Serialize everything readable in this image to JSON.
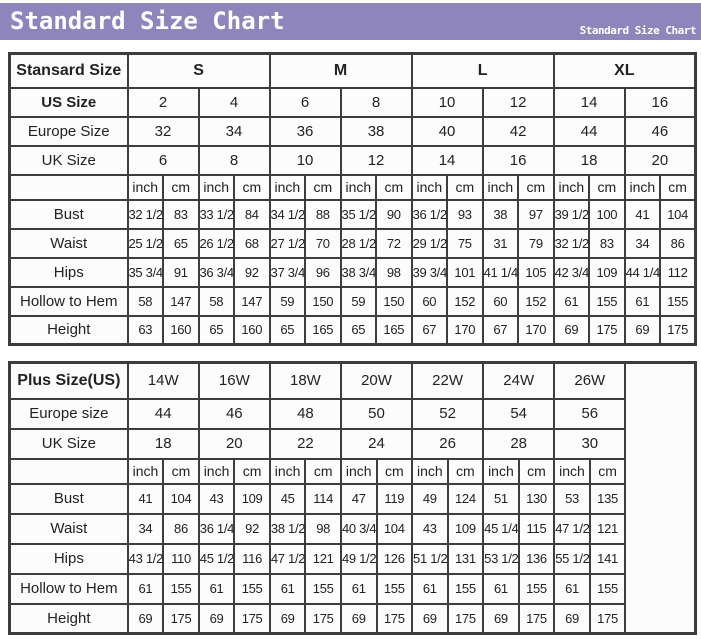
{
  "header": {
    "title": "Standard Size Chart",
    "subtitle": "Standard Size Chart",
    "bar_color": "#8e85bc",
    "text_color": "#ffffff"
  },
  "chart_data": [
    {
      "type": "table",
      "title": "Standard sizes table",
      "corner_label": "Stansard Size",
      "groups": [
        "S",
        "M",
        "L",
        "XL"
      ],
      "groups_bold": true,
      "size_rows": [
        {
          "label": "US Size",
          "bold": true,
          "values": [
            "2",
            "4",
            "6",
            "8",
            "10",
            "12",
            "14",
            "16"
          ]
        },
        {
          "label": "Europe Size",
          "bold": false,
          "values": [
            "32",
            "34",
            "36",
            "38",
            "40",
            "42",
            "44",
            "46"
          ]
        },
        {
          "label": "UK Size",
          "bold": false,
          "values": [
            "6",
            "8",
            "10",
            "12",
            "14",
            "16",
            "18",
            "20"
          ]
        }
      ],
      "units": [
        "inch",
        "cm",
        "inch",
        "cm",
        "inch",
        "cm",
        "inch",
        "cm",
        "inch",
        "cm",
        "inch",
        "cm",
        "inch",
        "cm",
        "inch",
        "cm"
      ],
      "measure_rows": [
        {
          "label": "Bust",
          "values": [
            "32 1/2",
            "83",
            "33 1/2",
            "84",
            "34 1/2",
            "88",
            "35 1/2",
            "90",
            "36 1/2",
            "93",
            "38",
            "97",
            "39 1/2",
            "100",
            "41",
            "104"
          ]
        },
        {
          "label": "Waist",
          "values": [
            "25 1/2",
            "65",
            "26 1/2",
            "68",
            "27 1/2",
            "70",
            "28 1/2",
            "72",
            "29 1/2",
            "75",
            "31",
            "79",
            "32 1/2",
            "83",
            "34",
            "86"
          ]
        },
        {
          "label": "Hips",
          "values": [
            "35 3/4",
            "91",
            "36 3/4",
            "92",
            "37 3/4",
            "96",
            "38 3/4",
            "98",
            "39 3/4",
            "101",
            "41 1/4",
            "105",
            "42 3/4",
            "109",
            "44 1/4",
            "112"
          ]
        },
        {
          "label": "Hollow to Hem",
          "values": [
            "58",
            "147",
            "58",
            "147",
            "59",
            "150",
            "59",
            "150",
            "60",
            "152",
            "60",
            "152",
            "61",
            "155",
            "61",
            "155"
          ]
        },
        {
          "label": "Height",
          "values": [
            "63",
            "160",
            "65",
            "160",
            "65",
            "165",
            "65",
            "165",
            "67",
            "170",
            "67",
            "170",
            "69",
            "175",
            "69",
            "175"
          ]
        }
      ],
      "trailing_empty_column": false
    },
    {
      "type": "table",
      "title": "Plus sizes table",
      "corner_label": "Plus Size(US)",
      "groups": [
        "14W",
        "16W",
        "18W",
        "20W",
        "22W",
        "24W",
        "26W"
      ],
      "groups_bold": false,
      "size_rows": [
        {
          "label": "Europe size",
          "bold": false,
          "values": [
            "44",
            "46",
            "48",
            "50",
            "52",
            "54",
            "56"
          ]
        },
        {
          "label": "UK Size",
          "bold": false,
          "values": [
            "18",
            "20",
            "22",
            "24",
            "26",
            "28",
            "30"
          ]
        }
      ],
      "units": [
        "inch",
        "cm",
        "inch",
        "cm",
        "inch",
        "cm",
        "inch",
        "cm",
        "inch",
        "cm",
        "inch",
        "cm",
        "inch",
        "cm"
      ],
      "measure_rows": [
        {
          "label": "Bust",
          "values": [
            "41",
            "104",
            "43",
            "109",
            "45",
            "114",
            "47",
            "119",
            "49",
            "124",
            "51",
            "130",
            "53",
            "135"
          ]
        },
        {
          "label": "Waist",
          "values": [
            "34",
            "86",
            "36 1/4",
            "92",
            "38 1/2",
            "98",
            "40 3/4",
            "104",
            "43",
            "109",
            "45 1/4",
            "115",
            "47 1/2",
            "121"
          ]
        },
        {
          "label": "Hips",
          "values": [
            "43 1/2",
            "110",
            "45 1/2",
            "116",
            "47 1/2",
            "121",
            "49 1/2",
            "126",
            "51 1/2",
            "131",
            "53 1/2",
            "136",
            "55 1/2",
            "141"
          ]
        },
        {
          "label": "Hollow to Hem",
          "values": [
            "61",
            "155",
            "61",
            "155",
            "61",
            "155",
            "61",
            "155",
            "61",
            "155",
            "61",
            "155",
            "61",
            "155"
          ]
        },
        {
          "label": "Height",
          "values": [
            "69",
            "175",
            "69",
            "175",
            "69",
            "175",
            "69",
            "175",
            "69",
            "175",
            "69",
            "175",
            "69",
            "175"
          ]
        }
      ],
      "trailing_empty_column": true
    }
  ]
}
